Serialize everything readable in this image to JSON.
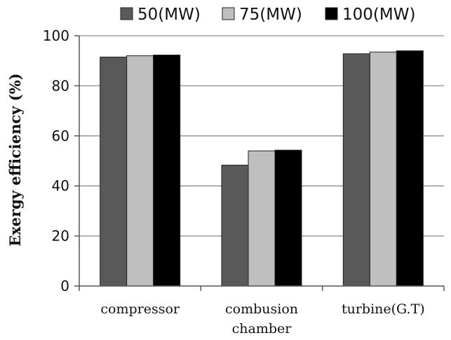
{
  "chart_data": {
    "type": "bar",
    "categories": [
      "compressor",
      "combusion chamber",
      "turbine(G.T)"
    ],
    "category_lines": [
      [
        "compressor"
      ],
      [
        "combusion",
        "chamber"
      ],
      [
        "turbine(G.T)"
      ]
    ],
    "series": [
      {
        "name": "50(MW)",
        "color": "#595959",
        "values": [
          91.5,
          48.3,
          92.8
        ]
      },
      {
        "name": "75(MW)",
        "color": "#bfbfbf",
        "values": [
          92.0,
          54.0,
          93.5
        ]
      },
      {
        "name": "100(MW)",
        "color": "#000000",
        "values": [
          92.3,
          54.3,
          94.0
        ]
      }
    ],
    "title": "",
    "xlabel": "",
    "ylabel": "Exergy  efficiency (%)",
    "ylim": [
      0,
      100
    ],
    "yticks": [
      0,
      20,
      40,
      60,
      80,
      100
    ],
    "grid": true,
    "legend_position": "top"
  }
}
